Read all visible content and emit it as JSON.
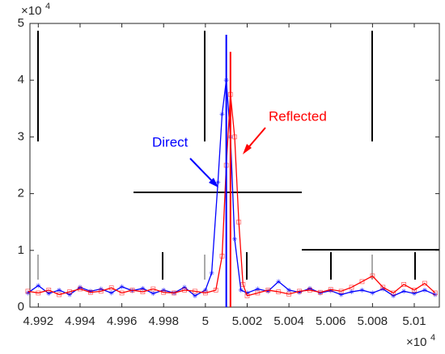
{
  "chart_data": {
    "type": "line",
    "x_exponent_base": "×10",
    "x_exponent": "4",
    "y_exponent_base": "×10",
    "y_exponent": "4",
    "xlim": [
      49916,
      50112
    ],
    "ylim": [
      0,
      50000
    ],
    "xticks": [
      {
        "value": 49920,
        "label": "4.992"
      },
      {
        "value": 49940,
        "label": "4.994"
      },
      {
        "value": 49960,
        "label": "4.996"
      },
      {
        "value": 49980,
        "label": "4.998"
      },
      {
        "value": 50000,
        "label": "5"
      },
      {
        "value": 50020,
        "label": "5.002"
      },
      {
        "value": 50040,
        "label": "5.004"
      },
      {
        "value": 50060,
        "label": "5.006"
      },
      {
        "value": 50080,
        "label": "5.008"
      },
      {
        "value": 50100,
        "label": "5.01"
      }
    ],
    "yticks": [
      {
        "value": 0,
        "label": "0"
      },
      {
        "value": 10000,
        "label": "1"
      },
      {
        "value": 20000,
        "label": "2"
      },
      {
        "value": 30000,
        "label": "3"
      },
      {
        "value": 40000,
        "label": "4"
      },
      {
        "value": 50000,
        "label": "5"
      }
    ],
    "series": [
      {
        "name": "Direct",
        "color": "#0000ff",
        "marker": "asterisk",
        "x": [
          49915,
          49920,
          49925,
          49930,
          49935,
          49940,
          49945,
          49950,
          49955,
          49960,
          49965,
          49970,
          49975,
          49980,
          49985,
          49990,
          49995,
          50000,
          50003,
          50006,
          50008,
          50010,
          50012,
          50014,
          50017,
          50020,
          50025,
          50030,
          50035,
          50040,
          50045,
          50050,
          50055,
          50060,
          50065,
          50070,
          50075,
          50080,
          50085,
          50090,
          50095,
          50100,
          50105,
          50110
        ],
        "values": [
          2500,
          3800,
          2400,
          3000,
          2200,
          3500,
          2800,
          3200,
          2500,
          3600,
          2900,
          3300,
          2400,
          3000,
          2500,
          3500,
          2000,
          3000,
          6000,
          22000,
          34000,
          40000,
          30000,
          12000,
          3000,
          2500,
          3200,
          2800,
          4500,
          3000,
          2600,
          3300,
          2500,
          2900,
          2200,
          2700,
          3000,
          2500,
          3200,
          2000,
          2800,
          2400,
          3000,
          2200
        ]
      },
      {
        "name": "Reflected",
        "color": "#ff0000",
        "marker": "square",
        "x": [
          49915,
          49920,
          49925,
          49930,
          49935,
          49940,
          49945,
          49950,
          49955,
          49960,
          49965,
          49970,
          49975,
          49980,
          49985,
          49990,
          49995,
          50000,
          50005,
          50008,
          50010,
          50012,
          50014,
          50016,
          50018,
          50020,
          50025,
          50030,
          50035,
          50040,
          50045,
          50050,
          50055,
          50060,
          50065,
          50070,
          50075,
          50080,
          50085,
          50090,
          50095,
          50100,
          50105,
          50110
        ],
        "values": [
          2800,
          2500,
          3000,
          2200,
          2700,
          3200,
          2600,
          2800,
          3400,
          2500,
          3000,
          2700,
          3200,
          2600,
          2500,
          3000,
          2800,
          2500,
          3000,
          9000,
          25000,
          37500,
          30000,
          15000,
          4000,
          2000,
          2500,
          3000,
          2700,
          2300,
          2800,
          3000,
          2600,
          3100,
          2800,
          3500,
          4500,
          5500,
          3500,
          2500,
          4000,
          3000,
          4200,
          2500
        ]
      }
    ],
    "stems": [
      {
        "x": 50010,
        "value": 48000,
        "color": "#0000ff"
      },
      {
        "x": 50012,
        "value": 45000,
        "color": "#ff0000"
      }
    ],
    "annotations": [
      {
        "text": "Direct",
        "color": "#0000ff"
      },
      {
        "text": "Reflected",
        "color": "#ff0000"
      }
    ]
  }
}
